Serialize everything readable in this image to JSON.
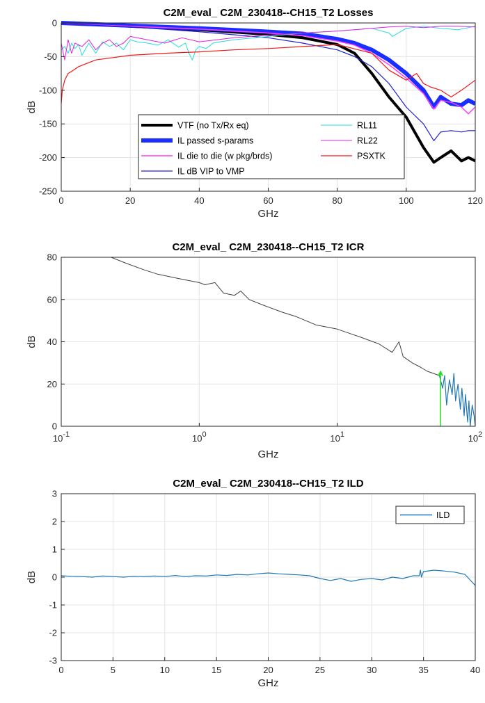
{
  "chart_data": [
    {
      "type": "line",
      "title": "C2M_eval_ C2M_230418--CH15_T2 Losses",
      "xlabel": "GHz",
      "ylabel": "dB",
      "xlim": [
        0,
        120
      ],
      "ylim": [
        -250,
        0
      ],
      "xticks": [
        "0",
        "20",
        "40",
        "60",
        "80",
        "100",
        "120"
      ],
      "yticks": [
        "0",
        "-50",
        "-100",
        "-150",
        "-200",
        "-250"
      ],
      "grid": true,
      "legend_position": "lower-left-inside",
      "series": [
        {
          "name": "VTF (no Tx/Rx eq)",
          "color": "#000000",
          "width": 4,
          "x": [
            0,
            20,
            40,
            60,
            70,
            80,
            85,
            90,
            95,
            100,
            105,
            108,
            110,
            113,
            116,
            118,
            120
          ],
          "y": [
            0,
            -5,
            -10,
            -17,
            -22,
            -32,
            -45,
            -75,
            -110,
            -140,
            -185,
            -207,
            -200,
            -190,
            -205,
            -200,
            -205
          ]
        },
        {
          "name": "IL passed s-params",
          "color": "#1a2fff",
          "width": 6,
          "x": [
            0,
            20,
            40,
            60,
            70,
            80,
            85,
            90,
            95,
            100,
            105,
            108,
            110,
            113,
            116,
            118,
            120
          ],
          "y": [
            0,
            -4,
            -8,
            -13,
            -16,
            -24,
            -30,
            -40,
            -55,
            -75,
            -100,
            -125,
            -110,
            -120,
            -122,
            -115,
            -120
          ]
        },
        {
          "name": "IL die to die (w pkg/brds)",
          "color": "#ff3cff",
          "width": 1.5,
          "x": [
            0,
            20,
            40,
            60,
            70,
            80,
            85,
            90,
            95,
            100,
            105,
            108,
            110,
            113,
            116,
            118,
            120
          ],
          "y": [
            -1,
            -5,
            -9,
            -15,
            -19,
            -27,
            -33,
            -45,
            -62,
            -82,
            -105,
            -128,
            -115,
            -118,
            -125,
            -135,
            -125
          ]
        },
        {
          "name": "IL dB VIP to VMP",
          "color": "#2020d0",
          "width": 1.2,
          "x": [
            0,
            20,
            40,
            60,
            70,
            80,
            85,
            90,
            95,
            100,
            105,
            108,
            110,
            113,
            116,
            118,
            120
          ],
          "y": [
            -1,
            -6,
            -13,
            -22,
            -30,
            -40,
            -50,
            -65,
            -90,
            -125,
            -150,
            -175,
            -162,
            -160,
            -162,
            -160,
            -160
          ]
        },
        {
          "name": "RL11",
          "color": "#22dddd",
          "width": 1,
          "x": [
            0,
            1,
            2,
            3,
            4,
            5,
            6,
            8,
            10,
            12,
            14,
            16,
            18,
            20,
            22,
            25,
            28,
            31,
            34,
            36,
            37,
            38,
            39,
            40,
            42,
            44,
            46,
            50,
            60,
            70,
            80,
            85,
            90,
            95,
            96,
            100,
            105,
            110,
            115,
            120
          ],
          "y": [
            -40,
            -35,
            -45,
            -30,
            -38,
            -32,
            -48,
            -30,
            -45,
            -28,
            -35,
            -30,
            -40,
            -25,
            -28,
            -30,
            -33,
            -25,
            -36,
            -30,
            -45,
            -55,
            -40,
            -35,
            -38,
            -30,
            -28,
            -25,
            -20,
            -15,
            -12,
            -10,
            -8,
            -15,
            -20,
            -8,
            -5,
            -8,
            -10,
            -5
          ]
        },
        {
          "name": "RL22",
          "color": "#e020e0",
          "width": 1,
          "x": [
            0,
            1,
            2,
            3,
            4,
            6,
            8,
            10,
            12,
            14,
            16,
            18,
            20,
            25,
            30,
            35,
            40,
            45,
            50,
            60,
            70,
            80,
            85,
            90,
            95,
            100,
            105,
            110,
            115,
            120
          ],
          "y": [
            -30,
            -55,
            -25,
            -45,
            -30,
            -35,
            -25,
            -40,
            -30,
            -25,
            -35,
            -30,
            -20,
            -25,
            -30,
            -22,
            -28,
            -25,
            -22,
            -18,
            -15,
            -12,
            -10,
            -8,
            -6,
            -5,
            -7,
            -5,
            -5,
            -6
          ]
        },
        {
          "name": "PSXTK",
          "color": "#f01818",
          "width": 1.2,
          "x": [
            0,
            0.3,
            1,
            2,
            3,
            5,
            10,
            20,
            30,
            40,
            50,
            60,
            70,
            80,
            90,
            95,
            100,
            103,
            105,
            107,
            110,
            113,
            116,
            120
          ],
          "y": [
            -120,
            -100,
            -85,
            -75,
            -72,
            -65,
            -55,
            -48,
            -45,
            -43,
            -40,
            -38,
            -35,
            -32,
            -45,
            -70,
            -85,
            -75,
            -90,
            -95,
            -100,
            -110,
            -100,
            -85
          ]
        }
      ]
    },
    {
      "type": "line",
      "title": "C2M_eval_ C2M_230418--CH15_T2 ICR",
      "xlabel": "GHz",
      "ylabel": "dB",
      "xscale": "log",
      "xlim": [
        0.1,
        100
      ],
      "ylim": [
        0,
        80
      ],
      "xticks": [
        {
          "base": "10",
          "exp": "-1"
        },
        {
          "base": "10",
          "exp": "0"
        },
        {
          "base": "10",
          "exp": "1"
        },
        {
          "base": "10",
          "exp": "2"
        }
      ],
      "yticks": [
        "0",
        "20",
        "40",
        "60",
        "80"
      ],
      "grid": true,
      "series": [
        {
          "name": "",
          "color": "#404040",
          "width": 1,
          "x": [
            0.23,
            0.3,
            0.4,
            0.5,
            0.7,
            1.0,
            1.1,
            1.3,
            1.5,
            1.8,
            2.0,
            2.3,
            3,
            4,
            5,
            7,
            10,
            15,
            20,
            25,
            28,
            30,
            35,
            40,
            45,
            50,
            55
          ],
          "y": [
            80,
            77,
            74,
            72,
            70,
            68,
            67,
            68,
            63,
            62,
            64,
            60,
            57,
            54,
            52,
            48,
            46,
            42,
            39,
            35,
            40,
            33,
            30,
            28,
            26,
            25,
            24
          ]
        },
        {
          "name": "",
          "color": "#1f77b4",
          "width": 1.2,
          "x": [
            55,
            58,
            60,
            62,
            65,
            68,
            70,
            72,
            75,
            78,
            80,
            83,
            85,
            88,
            90,
            92,
            95,
            98,
            100
          ],
          "y": [
            24,
            18,
            24,
            10,
            22,
            15,
            25,
            12,
            20,
            8,
            18,
            5,
            15,
            2,
            12,
            0,
            10,
            5,
            0
          ]
        },
        {
          "name": "",
          "color": "#22dd22",
          "width": 1.5,
          "x": [
            56,
            56,
            54,
            56,
            58,
            56
          ],
          "y": [
            0,
            25,
            24,
            26,
            24,
            25
          ]
        }
      ]
    },
    {
      "type": "line",
      "title": "C2M_eval_ C2M_230418--CH15_T2 ILD",
      "xlabel": "GHz",
      "ylabel": "dB",
      "xlim": [
        0,
        40
      ],
      "ylim": [
        -3,
        3
      ],
      "xticks": [
        "0",
        "5",
        "10",
        "15",
        "20",
        "25",
        "30",
        "35",
        "40"
      ],
      "yticks": [
        "3",
        "2",
        "1",
        "0",
        "-1",
        "-2",
        "-3"
      ],
      "grid": true,
      "legend_position": "top-right",
      "series": [
        {
          "name": "ILD",
          "color": "#1f77b4",
          "width": 1.2,
          "x": [
            0,
            1,
            2,
            3,
            4,
            5,
            6,
            7,
            8,
            9,
            10,
            11,
            12,
            13,
            14,
            15,
            16,
            17,
            18,
            19,
            20,
            21,
            22,
            23,
            24,
            25,
            26,
            27,
            28,
            29,
            30,
            31,
            32,
            33,
            34,
            34.6,
            34.7,
            34.8,
            35,
            36,
            37,
            38,
            39,
            40
          ],
          "y": [
            0.05,
            0.03,
            0.02,
            0.0,
            0.04,
            0.02,
            0.0,
            0.03,
            0.02,
            0.04,
            0.02,
            0.06,
            0.02,
            0.05,
            0.04,
            0.08,
            0.06,
            0.1,
            0.08,
            0.12,
            0.15,
            0.12,
            0.1,
            0.08,
            0.05,
            -0.05,
            -0.12,
            -0.05,
            -0.15,
            -0.08,
            -0.05,
            -0.1,
            0.0,
            -0.05,
            0.05,
            0.05,
            0.25,
            0.0,
            0.2,
            0.25,
            0.22,
            0.18,
            0.1,
            -0.3
          ]
        }
      ]
    }
  ]
}
